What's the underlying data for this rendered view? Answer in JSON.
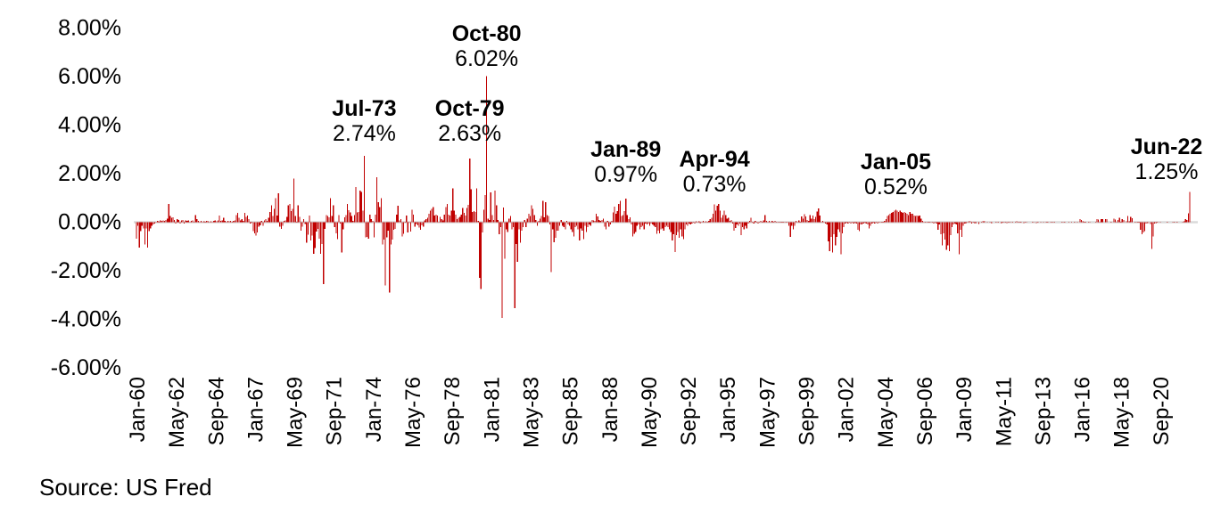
{
  "source_note": "Source: US Fred",
  "chart_data": {
    "type": "bar",
    "title": "",
    "xlabel": "",
    "ylabel": "",
    "unit": "percent",
    "grid": false,
    "legend": null,
    "ylim": [
      -6,
      8
    ],
    "bar_color": "#C00000",
    "zero_line_color": "#D9D9D9",
    "y_tick_labels": [
      "8.00%",
      "6.00%",
      "4.00%",
      "2.00%",
      "0.00%",
      "-2.00%",
      "-4.00%",
      "-6.00%"
    ],
    "y_tick_values": [
      8,
      6,
      4,
      2,
      0,
      -2,
      -4,
      -6
    ],
    "x_tick_labels": [
      "Jan-60",
      "May-62",
      "Sep-64",
      "Jan-67",
      "May-69",
      "Sep-71",
      "Jan-74",
      "May-76",
      "Sep-78",
      "Jan-81",
      "May-83",
      "Sep-85",
      "Jan-88",
      "May-90",
      "Sep-92",
      "Jan-95",
      "May-97",
      "Sep-99",
      "Jan-02",
      "May-04",
      "Sep-06",
      "Jan-09",
      "May-11",
      "Sep-13",
      "Jan-16",
      "May-18",
      "Sep-20"
    ],
    "x_tick_interval_months": 28,
    "series_start": "Jan-60",
    "series_end": "Jun-22",
    "annotations": [
      {
        "label": "Jul-73",
        "value_label": "2.74%",
        "month_index": 162,
        "value": 2.74
      },
      {
        "label": "Oct-79",
        "value_label": "2.63%",
        "month_index": 237,
        "value": 2.63
      },
      {
        "label": "Oct-80",
        "value_label": "6.02%",
        "month_index": 249,
        "value": 6.02
      },
      {
        "label": "Jan-89",
        "value_label": "0.97%",
        "month_index": 348,
        "value": 0.97
      },
      {
        "label": "Apr-94",
        "value_label": "0.73%",
        "month_index": 411,
        "value": 0.73
      },
      {
        "label": "Jan-05",
        "value_label": "0.52%",
        "month_index": 540,
        "value": 0.52
      },
      {
        "label": "Jun-22",
        "value_label": "1.25%",
        "month_index": 749,
        "value": 1.25
      }
    ],
    "values": [
      -0.67,
      -0.15,
      -1.04,
      -0.37,
      -0.15,
      -0.25,
      -0.92,
      -0.25,
      -1.04,
      -0.37,
      -0.25,
      -0.15,
      -0.1,
      -0.05,
      0.02,
      0.05,
      0.02,
      0.08,
      0.05,
      0.08,
      0.05,
      0.1,
      0.15,
      0.75,
      0.25,
      0.18,
      0.2,
      0.1,
      -0.05,
      0.12,
      0.1,
      -0.05,
      0.08,
      0.1,
      -0.05,
      0.08,
      0.05,
      0.08,
      0.02,
      0.06,
      0.08,
      0.02,
      0.3,
      0.12,
      0.05,
      0.02,
      0.06,
      0.02,
      0.04,
      0.02,
      0.06,
      0.04,
      0.02,
      0.04,
      0.02,
      0.05,
      0.08,
      0.04,
      0.08,
      0.28,
      0.06,
      0.08,
      0.18,
      0.05,
      0.02,
      0.05,
      0.04,
      0.06,
      0.02,
      0.06,
      0.08,
      0.3,
      0.38,
      0.18,
      0.08,
      0.12,
      0.05,
      0.38,
      0.22,
      0.28,
      0.12,
      -0.06,
      0.02,
      -0.36,
      -0.46,
      -0.55,
      -0.42,
      -0.18,
      -0.12,
      0.05,
      -0.15,
      0.08,
      0.12,
      0.05,
      0.18,
      0.42,
      0.7,
      0.25,
      0.55,
      1.0,
      0.28,
      1.2,
      -0.18,
      -0.28,
      -0.15,
      0.05,
      0.08,
      0.22,
      0.7,
      0.75,
      0.45,
      0.55,
      1.8,
      0.25,
      0.02,
      0.7,
      0.22,
      -0.35,
      -0.18,
      0.12,
      -0.08,
      -0.85,
      -0.52,
      0.28,
      -0.76,
      -0.55,
      -1.3,
      -1.06,
      -0.38,
      -0.28,
      -0.68,
      -1.3,
      -0.9,
      -2.55,
      -0.28,
      0.3,
      0.25,
      0.2,
      1.0,
      0.25,
      0.7,
      -0.2,
      -0.45,
      -0.7,
      0.3,
      -0.05,
      -1.25,
      -0.3,
      0.2,
      0.3,
      0.75,
      0.5,
      0.4,
      0.25,
      0.05,
      0.3,
      1.45,
      0.4,
      0.42,
      1.3,
      1.25,
      0.48,
      2.74,
      -0.62,
      -0.6,
      -0.68,
      0.32,
      0.12,
      0.05,
      -0.62,
      0.32,
      1.85,
      0.82,
      0.62,
      1.0,
      -0.92,
      -0.72,
      -2.6,
      -0.62,
      -0.35,
      -2.9,
      -0.92,
      -0.72,
      -0.32,
      -0.28,
      0.32,
      0.68,
      0.08,
      0.12,
      -0.58,
      -0.48,
      0.02,
      0.28,
      -0.42,
      0.02,
      -0.38,
      0.52,
      0.32,
      -0.18,
      -0.08,
      -0.12,
      -0.22,
      -0.32,
      -0.12,
      -0.18,
      0.08,
      0.12,
      0.18,
      0.35,
      0.48,
      0.55,
      0.62,
      0.28,
      0.32,
      0.28,
      0.02,
      0.22,
      0.12,
      0.08,
      0.32,
      0.62,
      0.75,
      0.32,
      0.28,
      0.48,
      1.4,
      0.48,
      0.32,
      0.12,
      0.18,
      0.22,
      0.32,
      0.58,
      0.38,
      0.28,
      0.58,
      0.72,
      2.63,
      1.35,
      0.42,
      0.45,
      0.42,
      1.4,
      0.05,
      -2.3,
      -2.75,
      -0.42,
      0.52,
      1.12,
      6.02,
      0.15,
      0.1,
      1.23,
      0.3,
      0.1,
      1.3,
      0.7,
      0.1,
      -0.5,
      -0.2,
      -3.95,
      0.6,
      -1.5,
      -0.3,
      -0.4,
      0.15,
      0.25,
      -0.3,
      -0.2,
      -3.55,
      -0.9,
      -1.64,
      -0.3,
      -0.85,
      -0.35,
      -0.2,
      0.1,
      -0.2,
      0.15,
      0.35,
      0.25,
      0.7,
      0.55,
      0.3,
      0.1,
      -0.15,
      0.05,
      0.15,
      0.25,
      0.88,
      0.2,
      0.82,
      0.3,
      0.25,
      -0.1,
      -2.05,
      -0.3,
      -0.82,
      -0.64,
      -0.35,
      -0.35,
      -0.15,
      0.1,
      -0.15,
      -0.2,
      -0.3,
      0.05,
      -0.1,
      -0.15,
      -0.3,
      -0.4,
      -0.58,
      -0.2,
      -0.15,
      -0.3,
      -0.76,
      -0.25,
      -0.35,
      -0.7,
      -0.15,
      -0.4,
      -0.2,
      -0.1,
      -0.15,
      0.1,
      0.08,
      0.05,
      0.35,
      0.23,
      0.1,
      0.05,
      0.1,
      0.15,
      -0.18,
      -0.3,
      0.05,
      -0.18,
      -0.1,
      0.05,
      0.4,
      0.64,
      0.35,
      0.45,
      0.76,
      0.88,
      0.25,
      0.3,
      0.45,
      0.97,
      0.29,
      0.12,
      0.2,
      -0.1,
      -0.58,
      -0.47,
      -0.41,
      -0.15,
      -0.1,
      -0.29,
      -0.2,
      -0.15,
      -0.29,
      -0.05,
      -0.1,
      -0.05,
      -0.15,
      -0.05,
      -0.1,
      -0.15,
      -0.2,
      -0.47,
      -0.35,
      -0.45,
      -0.3,
      -0.25,
      -0.35,
      -0.2,
      -0.15,
      -0.2,
      -0.3,
      -0.4,
      -0.76,
      -0.5,
      -1.23,
      -0.53,
      -0.41,
      -0.64,
      -0.3,
      -0.58,
      -0.7,
      -0.29,
      -0.1,
      -0.15,
      -0.05,
      -0.1,
      -0.05,
      0.02,
      -0.05,
      0.03,
      -0.02,
      0.04,
      -0.03,
      0.02,
      0.05,
      -0.02,
      0.03,
      0.02,
      0.05,
      0.12,
      0.18,
      0.35,
      0.73,
      0.47,
      0.68,
      0.76,
      0.47,
      0.18,
      0.3,
      0.48,
      0.3,
      0.15,
      0.18,
      0.05,
      0.1,
      -0.05,
      -0.35,
      -0.23,
      -0.1,
      -0.15,
      -0.05,
      -0.53,
      -0.2,
      -0.3,
      -0.15,
      -0.25,
      -0.05,
      0.05,
      0.18,
      0.02,
      -0.05,
      0.05,
      0.02,
      -0.05,
      0.02,
      0.05,
      0.02,
      0.08,
      0.3,
      0.05,
      0.02,
      0.05,
      0.02,
      0.05,
      0.02,
      0.05,
      0.02,
      0.02,
      -0.02,
      0.02,
      0.02,
      -0.02,
      0.02,
      -0.02,
      0.02,
      -0.15,
      -0.6,
      -0.15,
      -0.3,
      -0.15,
      0.05,
      0.02,
      0.08,
      0.02,
      0.23,
      0.15,
      0.33,
      0.23,
      0.1,
      0.05,
      0.3,
      0.15,
      0.28,
      0.12,
      0.22,
      0.44,
      0.56,
      0.27,
      0.02,
      0.05,
      0.02,
      -0.05,
      -0.1,
      -0.78,
      -1.19,
      -0.61,
      -1.25,
      -0.5,
      -0.96,
      -0.61,
      -0.3,
      -0.4,
      -1.33,
      -0.45,
      -0.2,
      -0.05,
      -0.02,
      -0.05,
      -0.02,
      -0.05,
      -0.02,
      -0.05,
      -0.02,
      -0.05,
      -0.32,
      -0.37,
      -0.1,
      -0.1,
      -0.05,
      -0.02,
      -0.05,
      -0.1,
      -0.26,
      -0.15,
      -0.05,
      -0.02,
      -0.05,
      -0.02,
      -0.05,
      0.02,
      0.02,
      -0.02,
      0.02,
      0.05,
      0.12,
      0.25,
      0.3,
      0.35,
      0.38,
      0.42,
      0.47,
      0.52,
      0.47,
      0.42,
      0.47,
      0.42,
      0.38,
      0.42,
      0.38,
      0.35,
      0.3,
      0.42,
      0.35,
      0.35,
      0.28,
      0.25,
      0.28,
      0.25,
      0.28,
      0.15,
      0.05,
      0.02,
      -0.02,
      0.02,
      -0.02,
      -0.02,
      0.02,
      -0.02,
      -0.05,
      -0.02,
      -0.05,
      -0.32,
      -0.1,
      -0.5,
      -0.96,
      -0.45,
      -0.72,
      -1.14,
      -0.96,
      -1.19,
      -0.53,
      -0.2,
      -0.1,
      -0.05,
      -0.1,
      -0.46,
      -1.33,
      -0.32,
      -0.6,
      -0.14,
      -0.06,
      -0.03,
      -0.02,
      0.03,
      0.03,
      -0.06,
      0.01,
      -0.03,
      -0.03,
      0.0,
      -0.07,
      0.0,
      0.02,
      0.03,
      0.04,
      0.0,
      -0.02,
      0.0,
      0.01,
      -0.03,
      0.0,
      0.0,
      -0.01,
      -0.01,
      -0.02,
      0.0,
      -0.04,
      0.01,
      -0.01,
      -0.02,
      -0.03,
      -0.02,
      -0.01,
      0.0,
      -0.01,
      0.0,
      0.02,
      0.03,
      -0.02,
      0.02,
      -0.01,
      0.0,
      -0.03,
      0.01,
      0.02,
      0.0,
      0.0,
      0.0,
      0.01,
      -0.01,
      0.0,
      -0.04,
      0.01,
      0.0,
      -0.01,
      0.0,
      0.01,
      0.0,
      0.01,
      -0.02,
      0.0,
      0.01,
      0.01,
      -0.01,
      0.01,
      0.0,
      0.0,
      0.0,
      0.0,
      0.01,
      0.02,
      -0.01,
      0.0,
      0.0,
      0.01,
      0.0,
      0.01,
      0.0,
      0.01,
      0.0,
      -0.02,
      0.0,
      0.12,
      0.1,
      0.04,
      -0.02,
      0.01,
      0.0,
      0.01,
      0.02,
      0.0,
      0.0,
      0.0,
      0.01,
      0.13,
      0.11,
      0.01,
      0.13,
      0.12,
      0.0,
      0.13,
      0.12,
      0.0,
      0.0,
      0.01,
      0.0,
      0.14,
      0.11,
      0.01,
      0.09,
      0.18,
      0.01,
      0.12,
      0.1,
      0.0,
      0.04,
      0.25,
      0.03,
      0.22,
      0.16,
      0.0,
      0.01,
      0.01,
      -0.01,
      -0.02,
      -0.32,
      -0.49,
      -0.43,
      -0.37,
      -0.05,
      -0.03,
      0.0,
      -0.07,
      -1.1,
      -0.58,
      -0.06,
      -0.03,
      0.01,
      0.0,
      -0.01,
      0.0,
      0.0,
      0.0,
      0.0,
      0.01,
      0.0,
      0.0,
      0.0,
      0.02,
      0.02,
      0.0,
      -0.02,
      0.0,
      0.0,
      0.0,
      0.02,
      0.03,
      0.12,
      0.1,
      0.37,
      1.25
    ]
  }
}
